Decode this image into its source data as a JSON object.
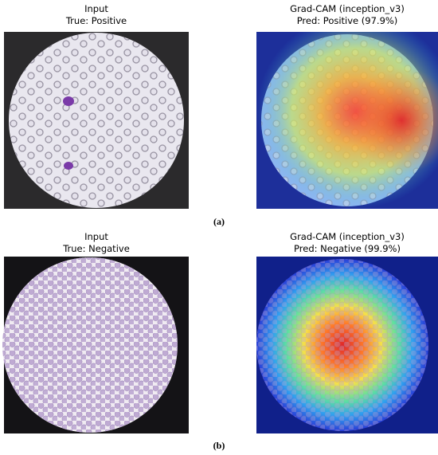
{
  "panels": [
    {
      "label": "(a)",
      "images": [
        {
          "title": [
            "Input",
            "True: Positive"
          ]
        },
        {
          "title": [
            "Grad-CAM (inception_v3)",
            "Pred: Positive (97.9%)"
          ]
        }
      ]
    },
    {
      "label": "(b)",
      "images": [
        {
          "title": [
            "Input",
            "True: Negative"
          ]
        },
        {
          "title": [
            "Grad-CAM (inception_v3)",
            "Pred: Negative (99.9%)"
          ]
        }
      ]
    }
  ]
}
